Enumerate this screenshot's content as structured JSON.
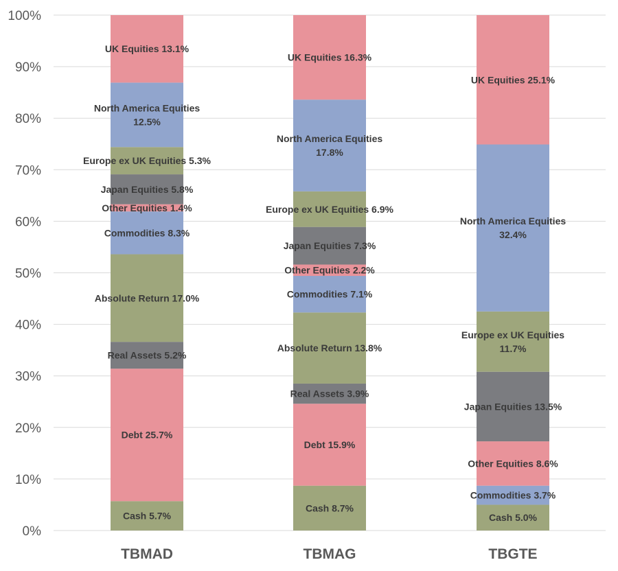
{
  "chart_data": {
    "type": "bar",
    "stacked": true,
    "percent": true,
    "title": "",
    "xlabel": "",
    "ylabel": "",
    "ylim": [
      0,
      100
    ],
    "yticks": [
      "0%",
      "10%",
      "20%",
      "30%",
      "40%",
      "50%",
      "60%",
      "70%",
      "80%",
      "90%",
      "100%"
    ],
    "grid": true,
    "categories": [
      "TBMAD",
      "TBMAG",
      "TBGTE"
    ],
    "colors": {
      "red": "#e8939a",
      "blue": "#91a5cd",
      "olive": "#9ea67c",
      "gray": "#7b7c80"
    },
    "bars": [
      {
        "category": "TBMAD",
        "segments": [
          {
            "label": "Cash 5.7%",
            "value": 5.7,
            "color": "olive"
          },
          {
            "label": "Debt 25.7%",
            "value": 25.7,
            "color": "red"
          },
          {
            "label": "Real Assets 5.2%",
            "value": 5.2,
            "color": "gray"
          },
          {
            "label": "Absolute Return 17.0%",
            "value": 17.0,
            "color": "olive"
          },
          {
            "label": "Commodities 8.3%",
            "value": 8.3,
            "color": "blue"
          },
          {
            "label": "Other Equities 1.4%",
            "value": 1.4,
            "color": "red"
          },
          {
            "label": "Japan Equities 5.8%",
            "value": 5.8,
            "color": "gray"
          },
          {
            "label": "Europe ex UK Equities 5.3%",
            "value": 5.3,
            "color": "olive"
          },
          {
            "label": "North America Equities\n12.5%",
            "value": 12.5,
            "color": "blue"
          },
          {
            "label": "UK Equities 13.1%",
            "value": 13.1,
            "color": "red"
          }
        ]
      },
      {
        "category": "TBMAG",
        "segments": [
          {
            "label": "Cash 8.7%",
            "value": 8.7,
            "color": "olive"
          },
          {
            "label": "Debt 15.9%",
            "value": 15.9,
            "color": "red"
          },
          {
            "label": "Real Assets 3.9%",
            "value": 3.9,
            "color": "gray"
          },
          {
            "label": "Absolute Return 13.8%",
            "value": 13.8,
            "color": "olive"
          },
          {
            "label": "Commodities 7.1%",
            "value": 7.1,
            "color": "blue"
          },
          {
            "label": "Other Equities 2.2%",
            "value": 2.2,
            "color": "red"
          },
          {
            "label": "Japan Equities 7.3%",
            "value": 7.3,
            "color": "gray"
          },
          {
            "label": "Europe ex UK Equities 6.9%",
            "value": 6.9,
            "color": "olive"
          },
          {
            "label": "North America Equities\n17.8%",
            "value": 17.8,
            "color": "blue"
          },
          {
            "label": "UK Equities 16.3%",
            "value": 16.3,
            "color": "red"
          }
        ]
      },
      {
        "category": "TBGTE",
        "segments": [
          {
            "label": "Cash 5.0%",
            "value": 5.0,
            "color": "olive"
          },
          {
            "label": "Commodities 3.7%",
            "value": 3.7,
            "color": "blue"
          },
          {
            "label": "Other Equities 8.6%",
            "value": 8.6,
            "color": "red"
          },
          {
            "label": "Japan Equities 13.5%",
            "value": 13.5,
            "color": "gray"
          },
          {
            "label": "Europe ex UK Equities\n11.7%",
            "value": 11.7,
            "color": "olive"
          },
          {
            "label": "North America Equities\n32.4%",
            "value": 32.4,
            "color": "blue"
          },
          {
            "label": "UK Equities 25.1%",
            "value": 25.1,
            "color": "red"
          }
        ]
      }
    ]
  }
}
